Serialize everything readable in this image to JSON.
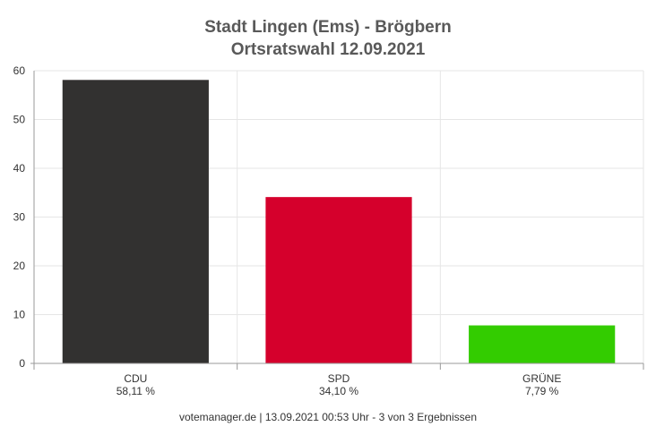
{
  "chart_data": {
    "type": "bar",
    "title": "Stadt Lingen (Ems) - Brögbern",
    "subtitle": "Ortsratswahl 12.09.2021",
    "categories": [
      "CDU",
      "SPD",
      "GRÜNE"
    ],
    "value_labels": [
      "58,11 %",
      "34,10 %",
      "7,79 %"
    ],
    "values": [
      58.11,
      34.1,
      7.79
    ],
    "colors": [
      "#323130",
      "#d5002c",
      "#33cc00"
    ],
    "ylim": [
      0,
      60
    ],
    "yticks": [
      "0",
      "10",
      "20",
      "30",
      "40",
      "50",
      "60"
    ],
    "grid": true,
    "legend": "none"
  },
  "footer": "votemanager.de | 13.09.2021 00:53 Uhr - 3 von 3 Ergebnissen"
}
